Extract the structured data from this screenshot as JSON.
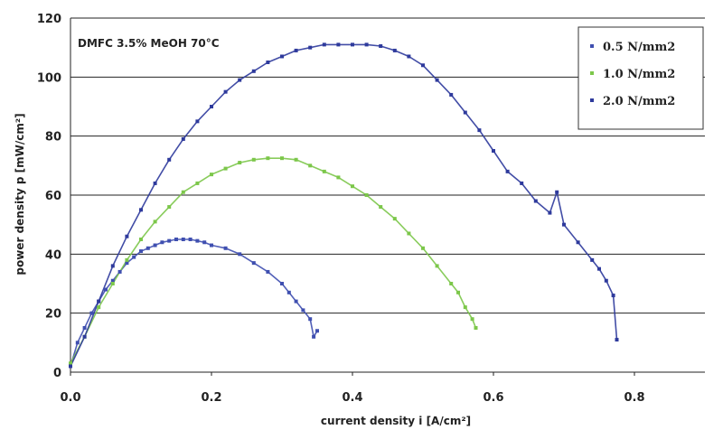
{
  "chart_data": {
    "type": "scatter",
    "title": "",
    "annotation": "DMFC 3.5% MeOH 70°C",
    "xlabel": "current density i [A/cm²]",
    "ylabel": "power density p [mW/cm²]",
    "xlim": [
      0,
      0.9
    ],
    "ylim": [
      0,
      120
    ],
    "x_ticks": [
      "0.0",
      "0.2",
      "0.4",
      "0.6",
      "0.8"
    ],
    "y_ticks": [
      "0",
      "20",
      "40",
      "60",
      "80",
      "100",
      "120"
    ],
    "grid": "horizontal",
    "legend_position": "top-right",
    "fit_lines": true,
    "series": [
      {
        "name": "0.5 N/mm2",
        "color": "#3f4fb0",
        "points": [
          [
            0.0,
            2
          ],
          [
            0.01,
            10
          ],
          [
            0.02,
            15
          ],
          [
            0.03,
            20
          ],
          [
            0.04,
            24
          ],
          [
            0.05,
            28
          ],
          [
            0.06,
            31
          ],
          [
            0.07,
            34
          ],
          [
            0.08,
            37
          ],
          [
            0.09,
            39
          ],
          [
            0.1,
            41
          ],
          [
            0.11,
            42
          ],
          [
            0.12,
            43
          ],
          [
            0.13,
            44
          ],
          [
            0.14,
            44.5
          ],
          [
            0.15,
            45
          ],
          [
            0.16,
            45
          ],
          [
            0.17,
            45
          ],
          [
            0.18,
            44.5
          ],
          [
            0.19,
            44
          ],
          [
            0.2,
            43
          ],
          [
            0.22,
            42
          ],
          [
            0.24,
            40
          ],
          [
            0.26,
            37
          ],
          [
            0.28,
            34
          ],
          [
            0.3,
            30
          ],
          [
            0.31,
            27
          ],
          [
            0.32,
            24
          ],
          [
            0.33,
            21
          ],
          [
            0.34,
            18
          ],
          [
            0.35,
            14
          ],
          [
            0.345,
            12
          ]
        ]
      },
      {
        "name": "1.0 N/mm2",
        "color": "#7cc74a",
        "points": [
          [
            0.0,
            3
          ],
          [
            0.02,
            12
          ],
          [
            0.04,
            22
          ],
          [
            0.06,
            30
          ],
          [
            0.08,
            38
          ],
          [
            0.1,
            45
          ],
          [
            0.12,
            51
          ],
          [
            0.14,
            56
          ],
          [
            0.16,
            61
          ],
          [
            0.18,
            64
          ],
          [
            0.2,
            67
          ],
          [
            0.22,
            69
          ],
          [
            0.24,
            71
          ],
          [
            0.26,
            72
          ],
          [
            0.28,
            72.5
          ],
          [
            0.3,
            72.5
          ],
          [
            0.32,
            72
          ],
          [
            0.34,
            70
          ],
          [
            0.36,
            68
          ],
          [
            0.38,
            66
          ],
          [
            0.4,
            63
          ],
          [
            0.42,
            60
          ],
          [
            0.44,
            56
          ],
          [
            0.46,
            52
          ],
          [
            0.48,
            47
          ],
          [
            0.5,
            42
          ],
          [
            0.52,
            36
          ],
          [
            0.54,
            30
          ],
          [
            0.55,
            27
          ],
          [
            0.56,
            22
          ],
          [
            0.57,
            18
          ],
          [
            0.575,
            15
          ]
        ]
      },
      {
        "name": "2.0 N/mm2",
        "color": "#2e3a9c",
        "points": [
          [
            0.0,
            2
          ],
          [
            0.02,
            12
          ],
          [
            0.04,
            24
          ],
          [
            0.06,
            36
          ],
          [
            0.08,
            46
          ],
          [
            0.1,
            55
          ],
          [
            0.12,
            64
          ],
          [
            0.14,
            72
          ],
          [
            0.16,
            79
          ],
          [
            0.18,
            85
          ],
          [
            0.2,
            90
          ],
          [
            0.22,
            95
          ],
          [
            0.24,
            99
          ],
          [
            0.26,
            102
          ],
          [
            0.28,
            105
          ],
          [
            0.3,
            107
          ],
          [
            0.32,
            109
          ],
          [
            0.34,
            110
          ],
          [
            0.36,
            111
          ],
          [
            0.38,
            111
          ],
          [
            0.4,
            111
          ],
          [
            0.42,
            111
          ],
          [
            0.44,
            110.5
          ],
          [
            0.46,
            109
          ],
          [
            0.48,
            107
          ],
          [
            0.5,
            104
          ],
          [
            0.52,
            99
          ],
          [
            0.54,
            94
          ],
          [
            0.56,
            88
          ],
          [
            0.58,
            82
          ],
          [
            0.6,
            75
          ],
          [
            0.62,
            68
          ],
          [
            0.64,
            64
          ],
          [
            0.66,
            58
          ],
          [
            0.68,
            54
          ],
          [
            0.69,
            61
          ],
          [
            0.7,
            50
          ],
          [
            0.72,
            44
          ],
          [
            0.74,
            38
          ],
          [
            0.75,
            35
          ],
          [
            0.76,
            31
          ],
          [
            0.77,
            26
          ],
          [
            0.775,
            11
          ]
        ]
      }
    ]
  }
}
